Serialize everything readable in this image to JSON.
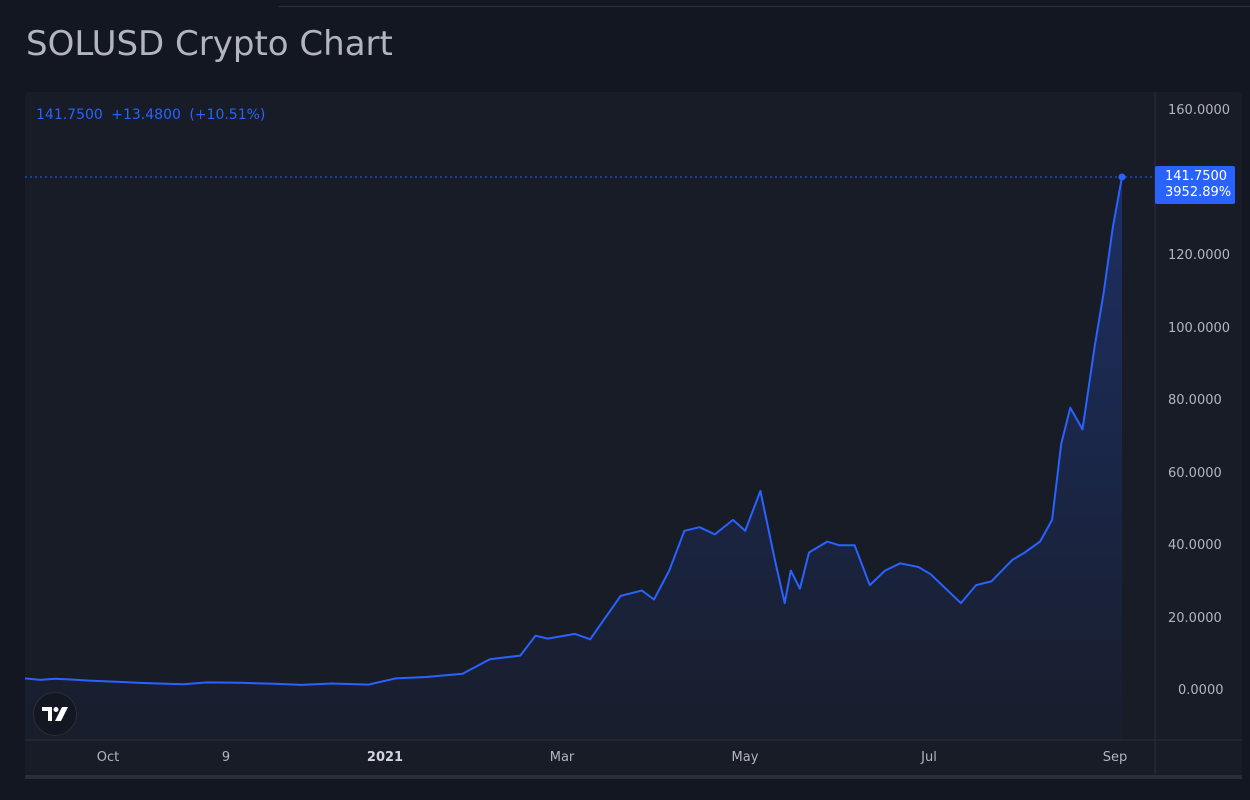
{
  "page": {
    "title": "SOLUSD Crypto Chart"
  },
  "legend": {
    "price": "141.7500",
    "change": "+13.4800",
    "change_pct": "(+10.51%)"
  },
  "price_tag": {
    "price": "141.7500",
    "pct": "3952.89%"
  },
  "y_axis": {
    "ticks": [
      "160.0000",
      "120.0000",
      "100.0000",
      "80.0000",
      "60.0000",
      "40.0000",
      "20.0000",
      "0.0000"
    ]
  },
  "x_axis": {
    "ticks": [
      "Oct",
      "9",
      "2021",
      "Mar",
      "May",
      "Jul",
      "Sep"
    ]
  },
  "logo": {
    "icon": "tradingview-logo-icon"
  },
  "colors": {
    "line": "#2962ff",
    "background": "#131722",
    "pane": "#181c27",
    "text": "#b2b5be"
  },
  "chart_data": {
    "type": "area",
    "title": "SOLUSD Crypto Chart",
    "xlabel": "",
    "ylabel": "",
    "ylim": [
      -5,
      165
    ],
    "grid": false,
    "legend_position": "top-left",
    "x_tick_labels": [
      "Oct",
      "9",
      "2021",
      "Mar",
      "May",
      "Jul",
      "Sep"
    ],
    "series": [
      {
        "name": "SOLUSD",
        "color": "#2962ff",
        "x": [
          "2020-09-10",
          "2020-09-15",
          "2020-09-20",
          "2020-09-25",
          "2020-10-01",
          "2020-10-10",
          "2020-10-20",
          "2020-11-01",
          "2020-11-09",
          "2020-11-20",
          "2020-12-01",
          "2020-12-10",
          "2020-12-20",
          "2021-01-01",
          "2021-01-10",
          "2021-01-20",
          "2021-02-01",
          "2021-02-10",
          "2021-02-20",
          "2021-02-25",
          "2021-03-01",
          "2021-03-10",
          "2021-03-15",
          "2021-03-20",
          "2021-03-25",
          "2021-04-01",
          "2021-04-05",
          "2021-04-10",
          "2021-04-15",
          "2021-04-20",
          "2021-04-25",
          "2021-05-01",
          "2021-05-05",
          "2021-05-10",
          "2021-05-15",
          "2021-05-18",
          "2021-05-20",
          "2021-05-23",
          "2021-05-26",
          "2021-06-01",
          "2021-06-05",
          "2021-06-10",
          "2021-06-15",
          "2021-06-20",
          "2021-06-25",
          "2021-07-01",
          "2021-07-05",
          "2021-07-10",
          "2021-07-15",
          "2021-07-20",
          "2021-07-25",
          "2021-08-01",
          "2021-08-05",
          "2021-08-10",
          "2021-08-14",
          "2021-08-17",
          "2021-08-20",
          "2021-08-24",
          "2021-08-28",
          "2021-08-31",
          "2021-09-03",
          "2021-09-06"
        ],
        "values": [
          3.2,
          2.8,
          3.1,
          2.9,
          2.6,
          2.3,
          1.9,
          1.6,
          2.1,
          2.0,
          1.7,
          1.4,
          1.8,
          1.5,
          3.2,
          3.6,
          4.5,
          8.5,
          9.5,
          15.0,
          14.2,
          15.5,
          14.0,
          20.0,
          26.0,
          27.5,
          25.0,
          33.0,
          44.0,
          45.0,
          43.0,
          47.0,
          44.0,
          55.0,
          35.0,
          24.0,
          33.0,
          28.0,
          38.0,
          41.0,
          40.0,
          40.0,
          29.0,
          33.0,
          35.0,
          34.0,
          32.0,
          28.0,
          24.0,
          29.0,
          30.0,
          36.0,
          38.0,
          41.0,
          47.0,
          68.0,
          78.0,
          72.0,
          95.0,
          110.0,
          128.0,
          141.75
        ]
      }
    ]
  }
}
